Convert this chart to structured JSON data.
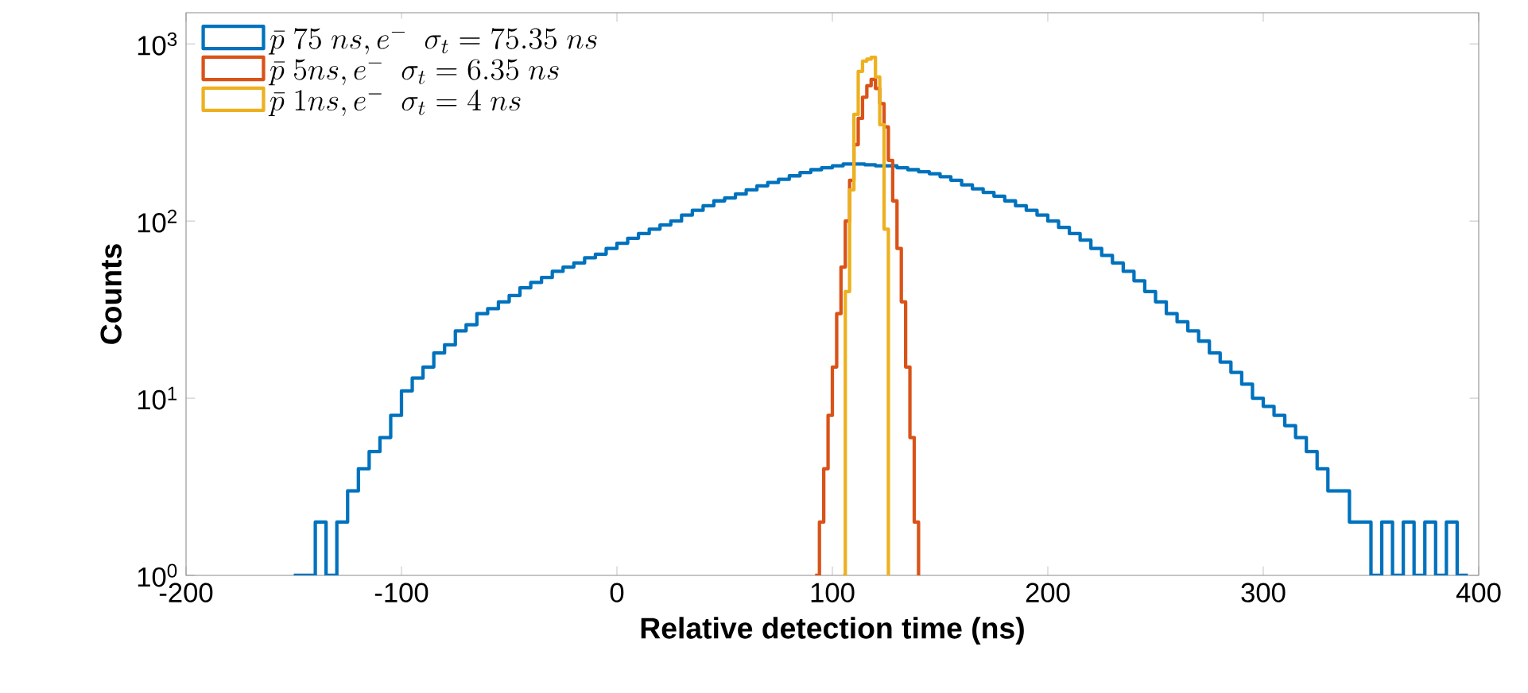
{
  "chart_data": {
    "type": "step",
    "xlabel": "Relative detection time (ns)",
    "ylabel": "Counts",
    "xlim": [
      -200,
      400
    ],
    "xticks": [
      -200,
      -100,
      0,
      100,
      200,
      300,
      400
    ],
    "ylim": [
      1,
      1500
    ],
    "yticks": [
      {
        "value": 1,
        "label": "10$^{0}$"
      },
      {
        "value": 10,
        "label": "10$^{1}$"
      },
      {
        "value": 100,
        "label": "10$^{2}$"
      },
      {
        "value": 1000,
        "label": "10$^{3}$"
      }
    ],
    "log": "y",
    "grid": false,
    "legend": "top left",
    "series": [
      {
        "name": "\\bar{p}\\ 75\\ ns, e^{-}\\ \\ \\sigma_t = 75.35\\ ns",
        "color": "#0072bd",
        "x": [
          -150,
          -145,
          -140,
          -135,
          -130,
          -125,
          -120,
          -115,
          -110,
          -105,
          -100,
          -95,
          -90,
          -85,
          -80,
          -75,
          -70,
          -65,
          -60,
          -55,
          -50,
          -45,
          -40,
          -35,
          -30,
          -25,
          -20,
          -15,
          -10,
          -5,
          0,
          5,
          10,
          15,
          20,
          25,
          30,
          35,
          40,
          45,
          50,
          55,
          60,
          65,
          70,
          75,
          80,
          85,
          90,
          95,
          100,
          105,
          110,
          115,
          120,
          125,
          130,
          135,
          140,
          145,
          150,
          155,
          160,
          165,
          170,
          175,
          180,
          185,
          190,
          195,
          200,
          205,
          210,
          215,
          220,
          225,
          230,
          235,
          240,
          245,
          250,
          255,
          260,
          265,
          270,
          275,
          280,
          285,
          290,
          295,
          300,
          305,
          310,
          315,
          320,
          325,
          330,
          335,
          340,
          345,
          350,
          355,
          360,
          365,
          370,
          375,
          380,
          385,
          390,
          395
        ],
        "values": [
          1,
          1,
          2,
          1,
          2,
          3,
          4,
          5,
          6,
          8,
          11,
          13,
          15,
          18,
          20,
          24,
          26,
          30,
          32,
          35,
          38,
          42,
          45,
          48,
          52,
          55,
          58,
          62,
          65,
          70,
          75,
          80,
          85,
          90,
          95,
          100,
          108,
          115,
          122,
          130,
          135,
          142,
          150,
          158,
          165,
          172,
          180,
          188,
          195,
          200,
          205,
          210,
          210,
          208,
          205,
          205,
          200,
          195,
          190,
          185,
          178,
          170,
          160,
          152,
          145,
          138,
          130,
          122,
          115,
          108,
          100,
          92,
          85,
          78,
          70,
          64,
          58,
          52,
          46,
          40,
          35,
          30,
          27,
          24,
          21,
          18,
          16,
          14,
          12,
          10,
          9,
          8,
          7,
          6,
          5,
          4,
          3,
          3,
          2,
          2,
          1,
          2,
          1,
          2,
          1,
          2,
          1,
          2,
          1,
          1
        ]
      },
      {
        "name": "\\bar{p}\\ 5ns, e^{-}\\ \\ \\sigma_t = 6.35\\ ns",
        "color": "#d95319",
        "x": [
          92,
          94,
          96,
          98,
          100,
          102,
          104,
          106,
          108,
          110,
          112,
          114,
          116,
          118,
          120,
          122,
          124,
          126,
          128,
          130,
          132,
          134,
          136,
          138,
          140
        ],
        "values": [
          1,
          2,
          4,
          8,
          15,
          30,
          55,
          100,
          170,
          270,
          380,
          500,
          580,
          630,
          560,
          460,
          340,
          220,
          130,
          70,
          35,
          15,
          6,
          2,
          1
        ]
      },
      {
        "name": "\\bar{p}\\ 1ns, e^{-}\\ \\ \\sigma_t = 4\\ ns",
        "color": "#edb120",
        "x": [
          105,
          106,
          108,
          110,
          112,
          114,
          116,
          118,
          120,
          122,
          124,
          126
        ],
        "values": [
          1,
          40,
          150,
          400,
          700,
          800,
          820,
          840,
          650,
          350,
          90,
          1
        ]
      }
    ]
  }
}
